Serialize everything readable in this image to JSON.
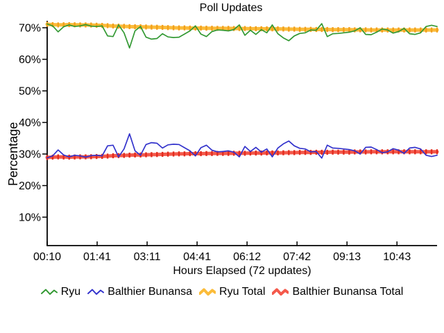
{
  "chart_data": {
    "type": "line",
    "title": "Poll Updates",
    "xlabel": "Hours Elapsed (72 updates)",
    "ylabel": "Percentage",
    "background_color": "#ffffff",
    "axis_color": "#000000",
    "grid": false,
    "legend_position": "bottom",
    "ylim": [
      0,
      75
    ],
    "y_tick_values": [
      70,
      60,
      50,
      40,
      30,
      20,
      10
    ],
    "y_tick_labels": [
      "70%",
      "60%",
      "50%",
      "40%",
      "30%",
      "20%",
      "10%"
    ],
    "x_ticks": [
      {
        "label": "00:10",
        "index": 0
      },
      {
        "label": "01:41",
        "index": 9.1
      },
      {
        "label": "03:11",
        "index": 18.2
      },
      {
        "label": "04:41",
        "index": 27.3
      },
      {
        "label": "06:12",
        "index": 36.4
      },
      {
        "label": "07:42",
        "index": 45.5
      },
      {
        "label": "09:13",
        "index": 54.6
      },
      {
        "label": "10:43",
        "index": 63.7
      }
    ],
    "updates_count": 72,
    "series": [
      {
        "name": "Ryu",
        "style": "thin",
        "color": "#339933",
        "values": [
          71.2,
          70.6,
          68.7,
          70.3,
          70.9,
          70.4,
          70.6,
          71.0,
          70.5,
          70.4,
          70.6,
          67.4,
          67.2,
          70.9,
          68.4,
          63.6,
          69.0,
          70.4,
          67.0,
          66.4,
          66.6,
          68.1,
          67.1,
          66.9,
          67.0,
          68.0,
          69.0,
          70.6,
          68.0,
          67.2,
          68.8,
          69.3,
          69.2,
          69.0,
          69.4,
          70.9,
          67.6,
          69.2,
          67.9,
          69.4,
          68.4,
          70.9,
          68.1,
          66.8,
          65.9,
          67.4,
          68.2,
          68.4,
          69.3,
          69.2,
          71.3,
          67.2,
          68.1,
          68.2,
          68.4,
          68.6,
          69.0,
          70.0,
          67.9,
          67.8,
          68.6,
          69.6,
          69.3,
          68.3,
          68.8,
          69.8,
          68.1,
          67.9,
          68.4,
          70.4,
          70.8,
          70.4
        ]
      },
      {
        "name": "Balthier Bunansa",
        "style": "thin",
        "color": "#3333cc",
        "values": [
          28.8,
          29.4,
          31.3,
          29.7,
          29.1,
          29.6,
          29.4,
          29.0,
          29.5,
          29.6,
          29.4,
          32.6,
          32.8,
          29.1,
          31.6,
          36.4,
          31.0,
          29.6,
          33.0,
          33.6,
          33.4,
          31.9,
          32.9,
          33.1,
          33.0,
          32.0,
          31.0,
          29.4,
          32.0,
          32.8,
          31.2,
          30.7,
          30.8,
          31.0,
          30.6,
          29.1,
          32.4,
          30.8,
          32.1,
          30.6,
          31.6,
          29.1,
          31.9,
          33.2,
          34.1,
          32.6,
          31.8,
          31.6,
          30.7,
          30.8,
          28.7,
          32.8,
          31.9,
          31.8,
          31.6,
          31.4,
          31.0,
          30.0,
          32.1,
          32.2,
          31.4,
          30.4,
          30.7,
          31.7,
          31.2,
          30.2,
          31.9,
          32.1,
          31.6,
          29.6,
          29.2,
          29.6
        ]
      },
      {
        "name": "Ryu Total",
        "style": "thick",
        "color": "#fbbc3a",
        "marker_color": "#f2a01c",
        "values": [
          71.1,
          71.0,
          70.9,
          70.95,
          71.0,
          70.95,
          70.9,
          70.9,
          70.85,
          70.8,
          70.75,
          70.65,
          70.55,
          70.5,
          70.45,
          70.35,
          70.3,
          70.3,
          70.25,
          70.2,
          70.15,
          70.1,
          70.05,
          70.0,
          69.95,
          69.95,
          69.9,
          69.9,
          69.9,
          69.85,
          69.85,
          69.8,
          69.8,
          69.8,
          69.75,
          69.75,
          69.75,
          69.7,
          69.7,
          69.7,
          69.65,
          69.65,
          69.65,
          69.6,
          69.55,
          69.55,
          69.5,
          69.5,
          69.5,
          69.45,
          69.45,
          69.45,
          69.4,
          69.4,
          69.4,
          69.4,
          69.35,
          69.35,
          69.35,
          69.3,
          69.3,
          69.3,
          69.3,
          69.3,
          69.3,
          69.3,
          69.3,
          69.3,
          69.3,
          69.3,
          69.3,
          69.3
        ]
      },
      {
        "name": "Balthier Bunansa Total",
        "style": "thick",
        "color": "#f4594b",
        "marker_color": "#e22c1e",
        "values": [
          28.9,
          29.0,
          29.1,
          29.05,
          29.0,
          29.05,
          29.1,
          29.1,
          29.15,
          29.2,
          29.25,
          29.35,
          29.45,
          29.5,
          29.55,
          29.65,
          29.7,
          29.7,
          29.75,
          29.8,
          29.85,
          29.9,
          29.95,
          30.0,
          30.05,
          30.05,
          30.1,
          30.1,
          30.1,
          30.15,
          30.15,
          30.2,
          30.2,
          30.2,
          30.25,
          30.25,
          30.25,
          30.3,
          30.3,
          30.3,
          30.35,
          30.35,
          30.35,
          30.4,
          30.45,
          30.45,
          30.5,
          30.5,
          30.5,
          30.55,
          30.55,
          30.55,
          30.6,
          30.6,
          30.6,
          30.6,
          30.65,
          30.65,
          30.65,
          30.7,
          30.7,
          30.7,
          30.7,
          30.7,
          30.7,
          30.7,
          30.7,
          30.7,
          30.7,
          30.7,
          30.7,
          30.7
        ]
      }
    ]
  }
}
